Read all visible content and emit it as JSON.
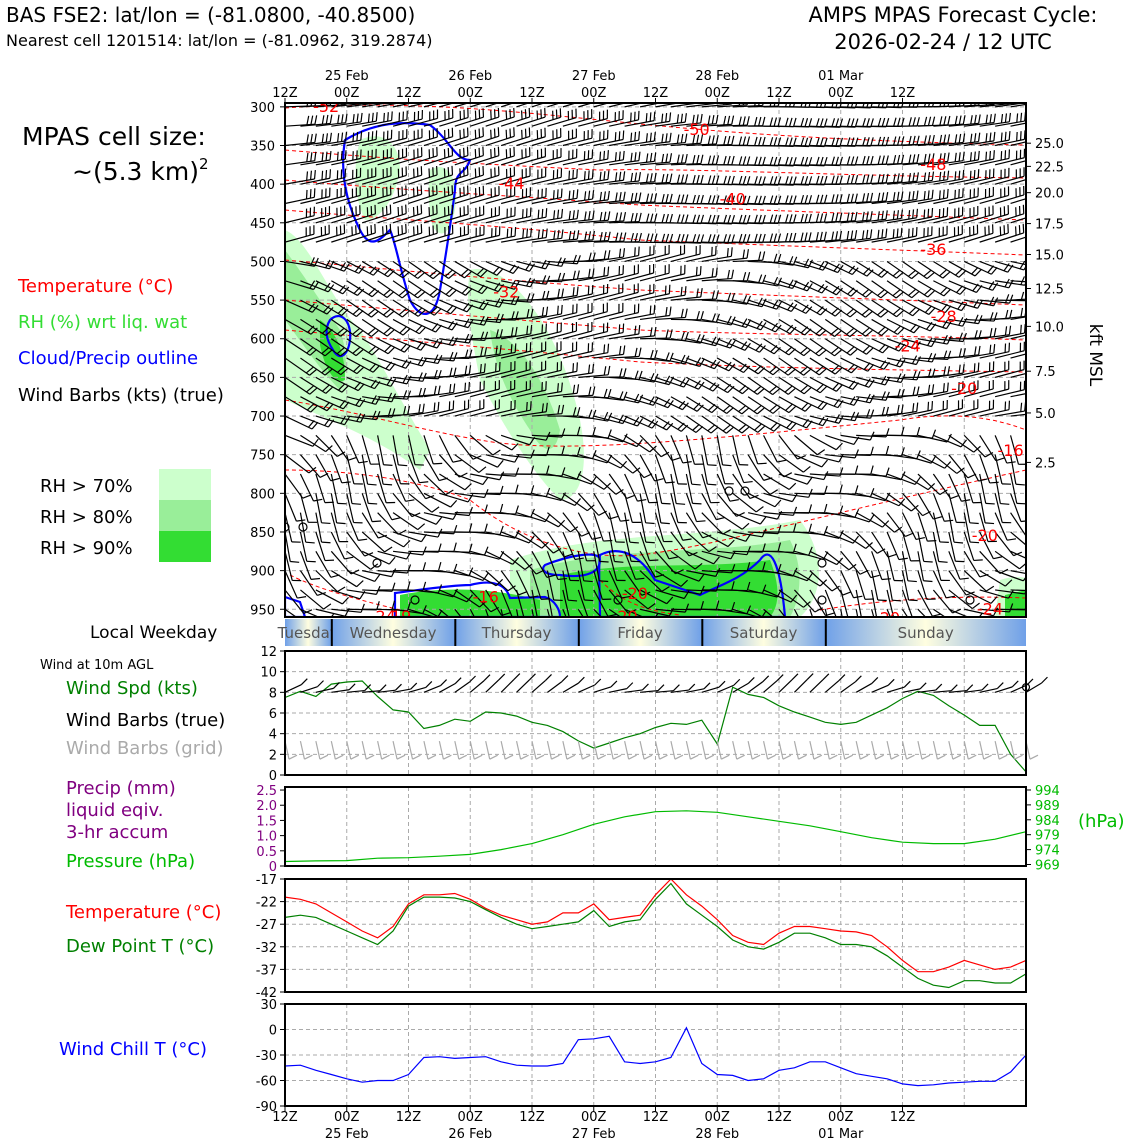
{
  "header": {
    "station_line": "BAS FSE2: lat/lon = (-81.0800, -40.8500)",
    "nearest_cell_line": "Nearest cell 1201514: lat/lon = (-81.0962, 319.2874)",
    "cycle_title_1": "AMPS MPAS Forecast Cycle:",
    "cycle_title_2": "2026-02-24 / 12 UTC"
  },
  "cell_size": {
    "label": "MPAS cell size:",
    "value": "~(5.3 km)",
    "exponent": "2"
  },
  "legend_main": {
    "temperature": "Temperature (°C)",
    "rh": "RH (%) wrt liq. wat",
    "cloud": "Cloud/Precip outline",
    "wind": "Wind Barbs (kts) (true)"
  },
  "rh_legend": [
    {
      "label": "RH > 70%",
      "color": "#ccffcc"
    },
    {
      "label": "RH > 80%",
      "color": "#99ee99"
    },
    {
      "label": "RH > 90%",
      "color": "#33dd33"
    }
  ],
  "colors": {
    "temperature": "#ff0000",
    "rh_text": "#33dd33",
    "cloud": "#0000ff",
    "wind_speed": "#008000",
    "pressure": "#00bb00",
    "precip": "#800080",
    "dewpoint": "#008000",
    "windchill": "#0000ff",
    "grid_barbs": "#aaaaaa"
  },
  "time_axis": {
    "top_ticks": [
      "12Z",
      "00Z",
      "12Z",
      "00Z",
      "12Z",
      "00Z",
      "12Z",
      "00Z",
      "12Z",
      "00Z",
      "12Z"
    ],
    "bottom_ticks": [
      "12Z",
      "00Z",
      "12Z",
      "00Z",
      "12Z",
      "00Z",
      "12Z",
      "00Z",
      "12Z",
      "00Z",
      "12Z"
    ],
    "dates": [
      "25 Feb",
      "26 Feb",
      "27 Feb",
      "28 Feb",
      "01 Mar"
    ]
  },
  "weekday": {
    "label": "Local Weekday",
    "days": [
      "Tuesday",
      "Wednesday",
      "Thursday",
      "Friday",
      "Saturday",
      "Sunday"
    ]
  },
  "panel_labels": {
    "wind10m": "Wind at 10m AGL",
    "wind_spd": "Wind Spd (kts)",
    "wind_barbs_true": "Wind Barbs (true)",
    "wind_barbs_grid": "Wind Barbs (grid)",
    "precip_1": "Precip (mm)",
    "precip_2": "liquid eqiv.",
    "precip_3": "3-hr accum",
    "pressure": "Pressure (hPa)",
    "pressure_unit": "(hPa)",
    "temperature": "Temperature (°C)",
    "dewpoint": "Dew Point T (°C)",
    "windchill": "Wind Chill T (°C)",
    "kft": "kft MSL"
  },
  "chart_data": [
    {
      "type": "heatmap",
      "name": "cross-section",
      "x_hours": [
        0,
        144
      ],
      "pressure_ticks": [
        300,
        350,
        400,
        450,
        500,
        550,
        600,
        650,
        700,
        750,
        800,
        850,
        900,
        950
      ],
      "kft_ticks": [
        "25.0",
        "22.5",
        "20.0",
        "17.5",
        "15.0",
        "12.5",
        "10.0",
        "7.5",
        "5.0",
        "2.5"
      ],
      "kft_tick_pressures": [
        347,
        377,
        411,
        451,
        491,
        535,
        584,
        642,
        696,
        760
      ],
      "kft_tick_pressures_note": "",
      "temp_isotherm_labels": [
        {
          "t": "-52",
          "h": 8,
          "p": 300
        },
        {
          "t": "-50",
          "h": 80,
          "p": 330
        },
        {
          "t": "-48",
          "h": 126,
          "p": 375
        },
        {
          "t": "-44",
          "h": 44,
          "p": 400
        },
        {
          "t": "-40",
          "h": 87,
          "p": 420
        },
        {
          "t": "-36",
          "h": 126,
          "p": 485
        },
        {
          "t": "-32",
          "h": 43,
          "p": 540
        },
        {
          "t": "-28",
          "h": 128,
          "p": 572
        },
        {
          "t": "-24",
          "h": 121,
          "p": 610
        },
        {
          "t": "-20",
          "h": 132,
          "p": 665
        },
        {
          "t": "-16",
          "h": 141,
          "p": 745
        },
        {
          "t": "-20",
          "h": 136,
          "p": 855
        },
        {
          "t": "-16",
          "h": 39,
          "p": 935
        },
        {
          "t": "-20",
          "h": 68,
          "p": 930
        },
        {
          "t": "-20",
          "h": 66,
          "p": 960
        },
        {
          "t": "-20",
          "h": 117,
          "p": 962
        },
        {
          "t": "-24",
          "h": 137,
          "p": 950
        },
        {
          "t": "-24",
          "h": 19,
          "p": 960
        },
        {
          "t": "-19",
          "h": 22,
          "p": 960
        }
      ]
    },
    {
      "type": "line",
      "name": "wind10m",
      "ylim": [
        0,
        12
      ],
      "yticks": [
        0,
        2,
        4,
        6,
        8,
        10,
        12
      ],
      "x": [
        0,
        3,
        6,
        9,
        12,
        15,
        18,
        21,
        24,
        27,
        30,
        33,
        36,
        39,
        42,
        45,
        48,
        51,
        54,
        57,
        60,
        63,
        66,
        69,
        72,
        75,
        78,
        81,
        84,
        87,
        90,
        93,
        96,
        99,
        102,
        105,
        108,
        111,
        114,
        117,
        120,
        123,
        126,
        129,
        132,
        135,
        138,
        141,
        144
      ],
      "wind_speed": [
        7.5,
        8.1,
        7.6,
        8.8,
        9.0,
        9.1,
        7.6,
        6.3,
        6.1,
        4.5,
        4.8,
        5.4,
        5.2,
        6.1,
        6.0,
        5.7,
        5.1,
        4.8,
        4.2,
        3.3,
        2.6,
        3.1,
        3.6,
        4.0,
        4.6,
        5.0,
        4.9,
        5.3,
        3.0,
        8.5,
        7.8,
        7.5,
        6.7,
        6.1,
        5.6,
        5.1,
        4.9,
        5.1,
        5.8,
        6.5,
        7.4,
        8.1,
        7.7,
        6.7,
        5.8,
        4.8,
        4.8,
        2.0,
        0.3
      ]
    },
    {
      "type": "line",
      "name": "precip_pressure",
      "precip_ylim": [
        0,
        2.5
      ],
      "precip_yticks": [
        "0",
        "0.5",
        "1.0",
        "1.5",
        "2.0",
        "2.5"
      ],
      "pressure_yticks": [
        "969",
        "974",
        "979",
        "984",
        "989",
        "994"
      ],
      "x": [
        0,
        6,
        12,
        18,
        24,
        30,
        36,
        42,
        48,
        54,
        60,
        66,
        72,
        78,
        84,
        90,
        96,
        102,
        108,
        114,
        120,
        126,
        132,
        138,
        144
      ],
      "pressure": [
        970,
        970.2,
        970.3,
        971.1,
        971.3,
        971.8,
        972.4,
        974,
        976,
        979,
        982.5,
        985,
        986.7,
        987,
        986.5,
        985,
        983.5,
        982,
        980,
        978,
        976.5,
        976,
        976,
        977.5,
        980
      ]
    },
    {
      "type": "line",
      "name": "temp_dewpoint",
      "ylim": [
        -42,
        -17
      ],
      "yticks": [
        -17,
        -22,
        -27,
        -32,
        -37,
        -42
      ],
      "x": [
        0,
        3,
        6,
        9,
        12,
        15,
        18,
        21,
        24,
        27,
        30,
        33,
        36,
        39,
        42,
        45,
        48,
        51,
        54,
        57,
        60,
        63,
        66,
        69,
        72,
        75,
        78,
        81,
        84,
        87,
        90,
        93,
        96,
        99,
        102,
        105,
        108,
        111,
        114,
        117,
        120,
        123,
        126,
        129,
        132,
        135,
        138,
        141,
        144
      ],
      "temperature": [
        -21.0,
        -21.5,
        -22.5,
        -24.5,
        -26.5,
        -28.5,
        -30,
        -27.5,
        -22.5,
        -20.5,
        -20.5,
        -20.2,
        -21.5,
        -23.5,
        -25,
        -26,
        -27,
        -26.5,
        -24.5,
        -24.5,
        -22.5,
        -26,
        -25.5,
        -25,
        -20.5,
        -17.0,
        -20.5,
        -23,
        -26,
        -29.5,
        -31,
        -31.5,
        -29,
        -27.5,
        -27.5,
        -28,
        -28.5,
        -28.7,
        -29.5,
        -32,
        -35,
        -37.5,
        -37.5,
        -36.5,
        -35,
        -36,
        -37,
        -36.5,
        -35
      ],
      "dewpoint": [
        -25.5,
        -25,
        -25.5,
        -27,
        -28.5,
        -30,
        -31.5,
        -28.5,
        -23,
        -21,
        -21,
        -21.2,
        -22,
        -23.8,
        -25.5,
        -27,
        -28,
        -27.5,
        -27,
        -26.5,
        -24,
        -27.5,
        -26.5,
        -26,
        -21.5,
        -18,
        -22.5,
        -25,
        -27.5,
        -30.5,
        -32,
        -32.5,
        -31,
        -29,
        -29,
        -30,
        -31.5,
        -31.5,
        -32,
        -34,
        -36.5,
        -39,
        -40.5,
        -41,
        -39.5,
        -39.5,
        -40,
        -40,
        -38
      ]
    },
    {
      "type": "line",
      "name": "windchill",
      "ylim": [
        -90,
        30
      ],
      "yticks": [
        30,
        0,
        -30,
        -60,
        -90
      ],
      "x": [
        0,
        3,
        6,
        9,
        12,
        15,
        18,
        21,
        24,
        27,
        30,
        33,
        36,
        39,
        42,
        45,
        48,
        51,
        54,
        57,
        60,
        63,
        66,
        69,
        72,
        75,
        78,
        81,
        84,
        87,
        90,
        93,
        96,
        99,
        102,
        105,
        108,
        111,
        114,
        117,
        120,
        123,
        126,
        129,
        132,
        135,
        138,
        141,
        144
      ],
      "wind_chill": [
        -43,
        -42,
        -48,
        -53,
        -58,
        -62,
        -60,
        -60,
        -53,
        -33,
        -32,
        -34,
        -33,
        -32,
        -38,
        -42,
        -43,
        -43,
        -40,
        -12,
        -11,
        -8,
        -38,
        -40,
        -38,
        -33,
        2,
        -40,
        -53,
        -54,
        -60,
        -58,
        -48,
        -45,
        -38,
        -38,
        -45,
        -52,
        -55,
        -58,
        -64,
        -66,
        -65,
        -63,
        -62,
        -61,
        -61,
        -50,
        -30
      ]
    }
  ]
}
